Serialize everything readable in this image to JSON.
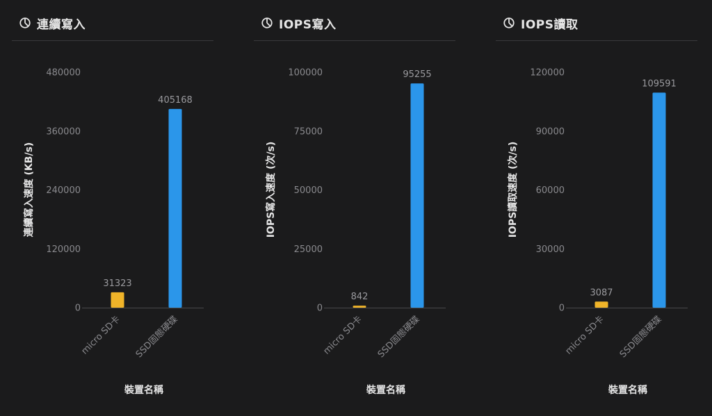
{
  "colors": {
    "background": "#1b1b1c",
    "sd_bar": "#f0b429",
    "ssd_bar": "#2b96ea",
    "axis_line": "#4a4a4c"
  },
  "icons": {
    "panel_icon": "pie-chart-icon"
  },
  "chart_data": [
    {
      "type": "bar",
      "title": "連續寫入",
      "xlabel": "裝置名稱",
      "ylabel": "連續寫入速度 (KB/s)",
      "categories": [
        "micro SD卡",
        "SSD固態硬碟"
      ],
      "values": [
        31323,
        405168
      ],
      "value_labels": [
        "31323",
        "405168"
      ],
      "bar_colors": [
        "#f0b429",
        "#2b96ea"
      ],
      "ylim": [
        0,
        480000
      ],
      "yticks": [
        0,
        120000,
        240000,
        360000,
        480000
      ],
      "ytick_labels": [
        "0",
        "120000",
        "240000",
        "360000",
        "480000"
      ],
      "grid": false
    },
    {
      "type": "bar",
      "title": "IOPS寫入",
      "xlabel": "裝置名稱",
      "ylabel": "IOPS寫入速度 (次/s)",
      "categories": [
        "micro SD卡",
        "SSD固態硬碟"
      ],
      "values": [
        842,
        95255
      ],
      "value_labels": [
        "842",
        "95255"
      ],
      "bar_colors": [
        "#f0b429",
        "#2b96ea"
      ],
      "ylim": [
        0,
        100000
      ],
      "yticks": [
        0,
        25000,
        50000,
        75000,
        100000
      ],
      "ytick_labels": [
        "0",
        "25000",
        "50000",
        "75000",
        "100000"
      ],
      "grid": false
    },
    {
      "type": "bar",
      "title": "IOPS讀取",
      "xlabel": "裝置名稱",
      "ylabel": "IOPS讀取速度 (次/s)",
      "categories": [
        "micro SD卡",
        "SSD固態硬碟"
      ],
      "values": [
        3087,
        109591
      ],
      "value_labels": [
        "3087",
        "109591"
      ],
      "bar_colors": [
        "#f0b429",
        "#2b96ea"
      ],
      "ylim": [
        0,
        120000
      ],
      "yticks": [
        0,
        30000,
        60000,
        90000,
        120000
      ],
      "ytick_labels": [
        "0",
        "30000",
        "60000",
        "90000",
        "120000"
      ],
      "grid": false
    }
  ]
}
